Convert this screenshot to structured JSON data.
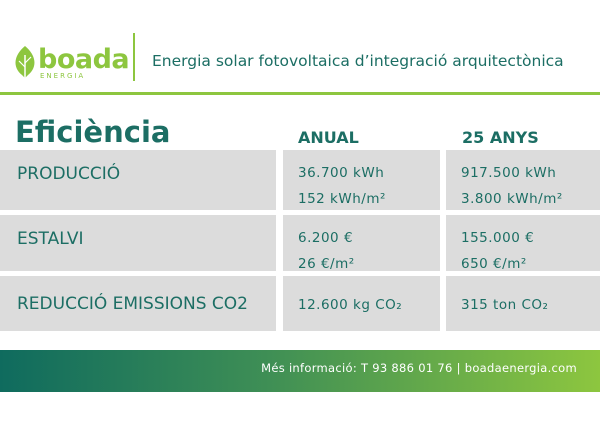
{
  "header": {
    "logo": {
      "name": "boada",
      "tagline": "ENERGIA"
    },
    "title": "Energia solar fotovoltaica d’integració arquitectònica"
  },
  "table": {
    "title": "Eficiència",
    "columns": [
      "ANUAL",
      "25 ANYS"
    ],
    "rows": [
      {
        "label": "PRODUCCIÓ",
        "cells": [
          [
            "36.700 kWh",
            "152 kWh/m²"
          ],
          [
            "917.500 kWh",
            "3.800 kWh/m²"
          ]
        ]
      },
      {
        "label": "ESTALVI",
        "cells": [
          [
            "6.200 €",
            "26 €/m²"
          ],
          [
            "155.000 €",
            "650 €/m²"
          ]
        ]
      },
      {
        "label": "REDUCCIÓ EMISSIONS CO2",
        "cells": [
          [
            "12.600 kg CO₂"
          ],
          [
            "315 ton CO₂"
          ]
        ]
      }
    ]
  },
  "footer": {
    "text": "Més informació: T 93 886 01 76 | boadaenergia.com"
  }
}
